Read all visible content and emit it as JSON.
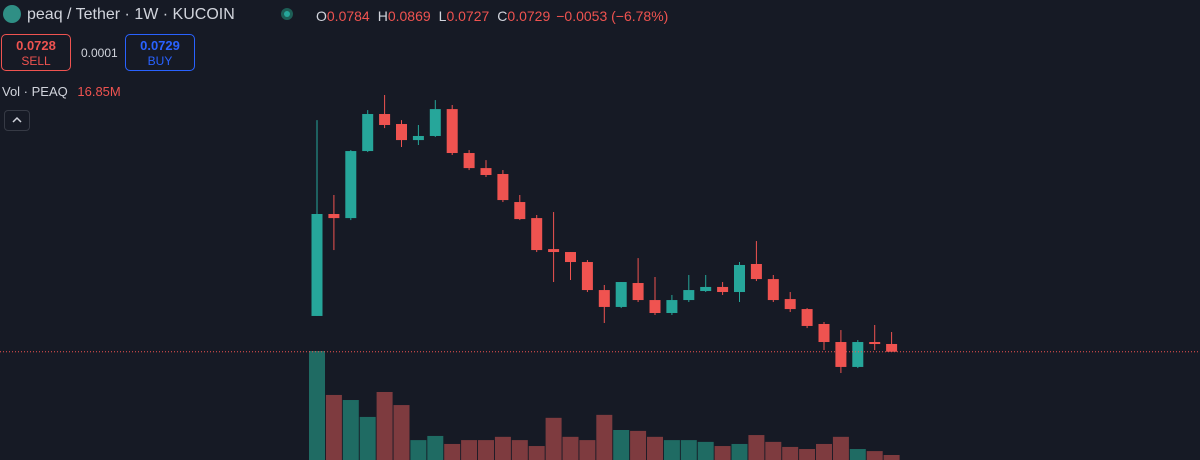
{
  "header": {
    "symbol": "peaq / Tether · 1W · KUCOIN",
    "ohlc": [
      {
        "label": "O",
        "value": "0.0784"
      },
      {
        "label": "H",
        "value": "0.0869"
      },
      {
        "label": "L",
        "value": "0.0727"
      },
      {
        "label": "C",
        "value": "0.0729"
      }
    ],
    "change": "−0.0053 (−6.78%)"
  },
  "trade": {
    "sell_price": "0.0728",
    "sell_label": "SELL",
    "spread": "0.0001",
    "buy_price": "0.0729",
    "buy_label": "BUY"
  },
  "volume_legend": {
    "name": "Vol · PEAQ",
    "value": "16.85M"
  },
  "chart_data": {
    "type": "candlestick",
    "open": [
      0.0983,
      0.1707,
      0.1678,
      0.2154,
      0.2417,
      0.2346,
      0.2232,
      0.2261,
      0.2452,
      0.214,
      0.2033,
      0.1991,
      0.1792,
      0.1678,
      0.1458,
      0.1437,
      0.1366,
      0.1167,
      0.1047,
      0.1217,
      0.1096,
      0.1004,
      0.1096,
      0.116,
      0.1189,
      0.1153,
      0.1352,
      0.1245,
      0.1103,
      0.1032,
      0.0926,
      0.0798,
      0.0621,
      0.0798,
      0.0784
    ],
    "high": [
      0.2374,
      0.1842,
      0.2161,
      0.2445,
      0.2552,
      0.2374,
      0.2339,
      0.2516,
      0.2481,
      0.2161,
      0.209,
      0.2019,
      0.1842,
      0.17,
      0.1721,
      0.1437,
      0.138,
      0.1203,
      0.1224,
      0.1394,
      0.126,
      0.1132,
      0.1274,
      0.1274,
      0.1224,
      0.1366,
      0.1515,
      0.1274,
      0.1153,
      0.1039,
      0.094,
      0.0883,
      0.0812,
      0.0919,
      0.0869
    ],
    "low": [
      0.0983,
      0.1451,
      0.1664,
      0.2147,
      0.2317,
      0.2183,
      0.2197,
      0.2254,
      0.2126,
      0.2019,
      0.197,
      0.1792,
      0.1664,
      0.1437,
      0.1224,
      0.1238,
      0.1153,
      0.0933,
      0.1039,
      0.1082,
      0.099,
      0.099,
      0.1082,
      0.1153,
      0.1132,
      0.1082,
      0.1231,
      0.1082,
      0.1011,
      0.0897,
      0.0741,
      0.0578,
      0.0613,
      0.0741,
      0.0727
    ],
    "close": [
      0.1707,
      0.1678,
      0.2154,
      0.2417,
      0.2339,
      0.2232,
      0.2261,
      0.2452,
      0.214,
      0.2033,
      0.1984,
      0.1806,
      0.1671,
      0.1451,
      0.1437,
      0.1366,
      0.1167,
      0.1047,
      0.1224,
      0.1096,
      0.1004,
      0.1096,
      0.1167,
      0.1189,
      0.1153,
      0.1345,
      0.1245,
      0.1096,
      0.1032,
      0.0912,
      0.0798,
      0.0621,
      0.0798,
      0.0784,
      0.0729
    ],
    "volume": [
      367,
      219,
      202,
      145,
      229,
      185,
      67,
      81,
      54,
      67,
      67,
      78,
      67,
      47,
      142,
      78,
      67,
      152,
      101,
      98,
      78,
      67,
      67,
      61,
      47,
      54,
      84,
      61,
      44,
      37,
      54,
      78,
      37,
      30,
      16.85
    ],
    "up_color": "#26a69a",
    "down_color": "#ef5350",
    "up_volume_color": "#1f6b63",
    "down_volume_color": "#7e3b3f"
  }
}
